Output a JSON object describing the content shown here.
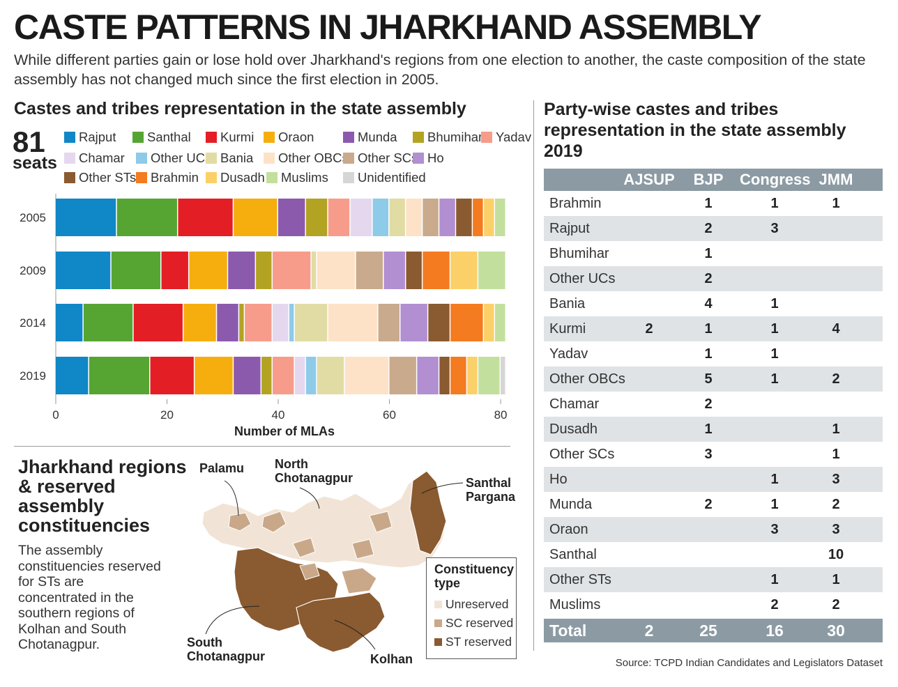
{
  "header": {
    "title": "CASTE PATTERNS IN JHARKHAND ASSEMBLY",
    "subtitle": "While different parties gain or lose hold over Jharkhand's regions from one election to another, the caste composition of the state assembly has not changed much since the first election in 2005."
  },
  "bar_section": {
    "title": "Castes and tribes representation in the state assembly",
    "seats_number": "81",
    "seats_label": "seats"
  },
  "legend": [
    {
      "label": "Rajput",
      "color": "#1087c6"
    },
    {
      "label": "Santhal",
      "color": "#56a533"
    },
    {
      "label": "Kurmi",
      "color": "#e31e25"
    },
    {
      "label": "Oraon",
      "color": "#f6ae0f"
    },
    {
      "label": "Munda",
      "color": "#8b5aad"
    },
    {
      "label": "Bhumihar",
      "color": "#b3a323"
    },
    {
      "label": "Yadav",
      "color": "#f79c8a"
    },
    {
      "label": "Chamar",
      "color": "#e5d8ee"
    },
    {
      "label": "Other UCs",
      "color": "#8ecbe8"
    },
    {
      "label": "Bania",
      "color": "#e1dca3"
    },
    {
      "label": "Other OBCs",
      "color": "#fde2c8"
    },
    {
      "label": "Other SCs",
      "color": "#c9aa8c"
    },
    {
      "label": "Ho",
      "color": "#b18fd1"
    },
    {
      "label": "Other STs",
      "color": "#8a5a30"
    },
    {
      "label": "Brahmin",
      "color": "#f47b20"
    },
    {
      "label": "Dusadh",
      "color": "#fcd068"
    },
    {
      "label": "Muslims",
      "color": "#c3df9d"
    },
    {
      "label": "Unidentified",
      "color": "#d6d6d6"
    }
  ],
  "chart_data": {
    "type": "bar",
    "orientation": "horizontal",
    "stacked": true,
    "categories": [
      "2005",
      "2009",
      "2014",
      "2019"
    ],
    "xlabel": "Number of MLAs",
    "ylabel": "",
    "xlim": [
      0,
      81
    ],
    "xticks": [
      "0",
      "20",
      "40",
      "60",
      "80"
    ],
    "series": [
      {
        "name": "Rajput",
        "values": [
          11,
          10,
          5,
          6
        ]
      },
      {
        "name": "Santhal",
        "values": [
          11,
          9,
          9,
          11
        ]
      },
      {
        "name": "Kurmi",
        "values": [
          10,
          5,
          9,
          8
        ]
      },
      {
        "name": "Oraon",
        "values": [
          8,
          7,
          6,
          7
        ]
      },
      {
        "name": "Munda",
        "values": [
          5,
          5,
          4,
          5
        ]
      },
      {
        "name": "Bhumihar",
        "values": [
          4,
          3,
          1,
          2
        ]
      },
      {
        "name": "Yadav",
        "values": [
          4,
          7,
          5,
          4
        ]
      },
      {
        "name": "Chamar",
        "values": [
          4,
          0,
          3,
          2
        ]
      },
      {
        "name": "Other UCs",
        "values": [
          3,
          0,
          1,
          2
        ]
      },
      {
        "name": "Bania",
        "values": [
          3,
          1,
          6,
          5
        ]
      },
      {
        "name": "Other OBCs",
        "values": [
          3,
          7,
          9,
          8
        ]
      },
      {
        "name": "Other SCs",
        "values": [
          3,
          5,
          4,
          5
        ]
      },
      {
        "name": "Ho",
        "values": [
          3,
          4,
          5,
          4
        ]
      },
      {
        "name": "Other STs",
        "values": [
          3,
          3,
          4,
          2
        ]
      },
      {
        "name": "Brahmin",
        "values": [
          2,
          5,
          6,
          3
        ]
      },
      {
        "name": "Dusadh",
        "values": [
          2,
          5,
          2,
          2
        ]
      },
      {
        "name": "Muslims",
        "values": [
          2,
          5,
          2,
          4
        ]
      },
      {
        "name": "Unidentified",
        "values": [
          0,
          0,
          0,
          1
        ]
      }
    ]
  },
  "table": {
    "title": "Party-wise castes and tribes representation in the state assembly 2019",
    "columns": [
      "AJSUP",
      "BJP",
      "Congress",
      "JMM"
    ],
    "rows": [
      {
        "name": "Brahmin",
        "values": [
          "",
          "1",
          "1",
          "1"
        ]
      },
      {
        "name": "Rajput",
        "values": [
          "",
          "2",
          "3",
          ""
        ]
      },
      {
        "name": "Bhumihar",
        "values": [
          "",
          "1",
          "",
          ""
        ]
      },
      {
        "name": "Other UCs",
        "values": [
          "",
          "2",
          "",
          ""
        ]
      },
      {
        "name": "Bania",
        "values": [
          "",
          "4",
          "1",
          ""
        ]
      },
      {
        "name": "Kurmi",
        "values": [
          "2",
          "1",
          "1",
          "4"
        ]
      },
      {
        "name": "Yadav",
        "values": [
          "",
          "1",
          "1",
          ""
        ]
      },
      {
        "name": "Other OBCs",
        "values": [
          "",
          "5",
          "1",
          "2"
        ]
      },
      {
        "name": "Chamar",
        "values": [
          "",
          "2",
          "",
          ""
        ]
      },
      {
        "name": "Dusadh",
        "values": [
          "",
          "1",
          "",
          "1"
        ]
      },
      {
        "name": "Other SCs",
        "values": [
          "",
          "3",
          "",
          "1"
        ]
      },
      {
        "name": "Ho",
        "values": [
          "",
          "",
          "1",
          "3"
        ]
      },
      {
        "name": "Munda",
        "values": [
          "",
          "2",
          "1",
          "2"
        ]
      },
      {
        "name": "Oraon",
        "values": [
          "",
          "",
          "3",
          "3"
        ]
      },
      {
        "name": "Santhal",
        "values": [
          "",
          "",
          "",
          "10"
        ]
      },
      {
        "name": "Other STs",
        "values": [
          "",
          "",
          "1",
          "1"
        ]
      },
      {
        "name": "Muslims",
        "values": [
          "",
          "",
          "2",
          "2"
        ]
      }
    ],
    "total": {
      "label": "Total",
      "values": [
        "2",
        "25",
        "16",
        "30"
      ]
    }
  },
  "regions": {
    "title": "Jharkhand regions & reserved assembly constituencies",
    "text": "The assembly constituencies reserved for STs are concentrated in the southern regions of Kolhan and South Chotanagpur.",
    "labels": {
      "palamu": "Palamu",
      "north_1": "North",
      "north_2": "Chotanagpur",
      "santhal_1": "Santhal",
      "santhal_2": "Pargana",
      "south_1": "South",
      "south_2": "Chotanagpur",
      "kolhan": "Kolhan"
    },
    "legend_title_1": "Constituency",
    "legend_title_2": "type",
    "legend": [
      {
        "label": "Unreserved",
        "color": "#f1e4d6"
      },
      {
        "label": "SC reserved",
        "color": "#c9a88a"
      },
      {
        "label": "ST reserved",
        "color": "#8a5a30"
      }
    ]
  },
  "source": "Source: TCPD Indian Candidates and Legislators Dataset"
}
